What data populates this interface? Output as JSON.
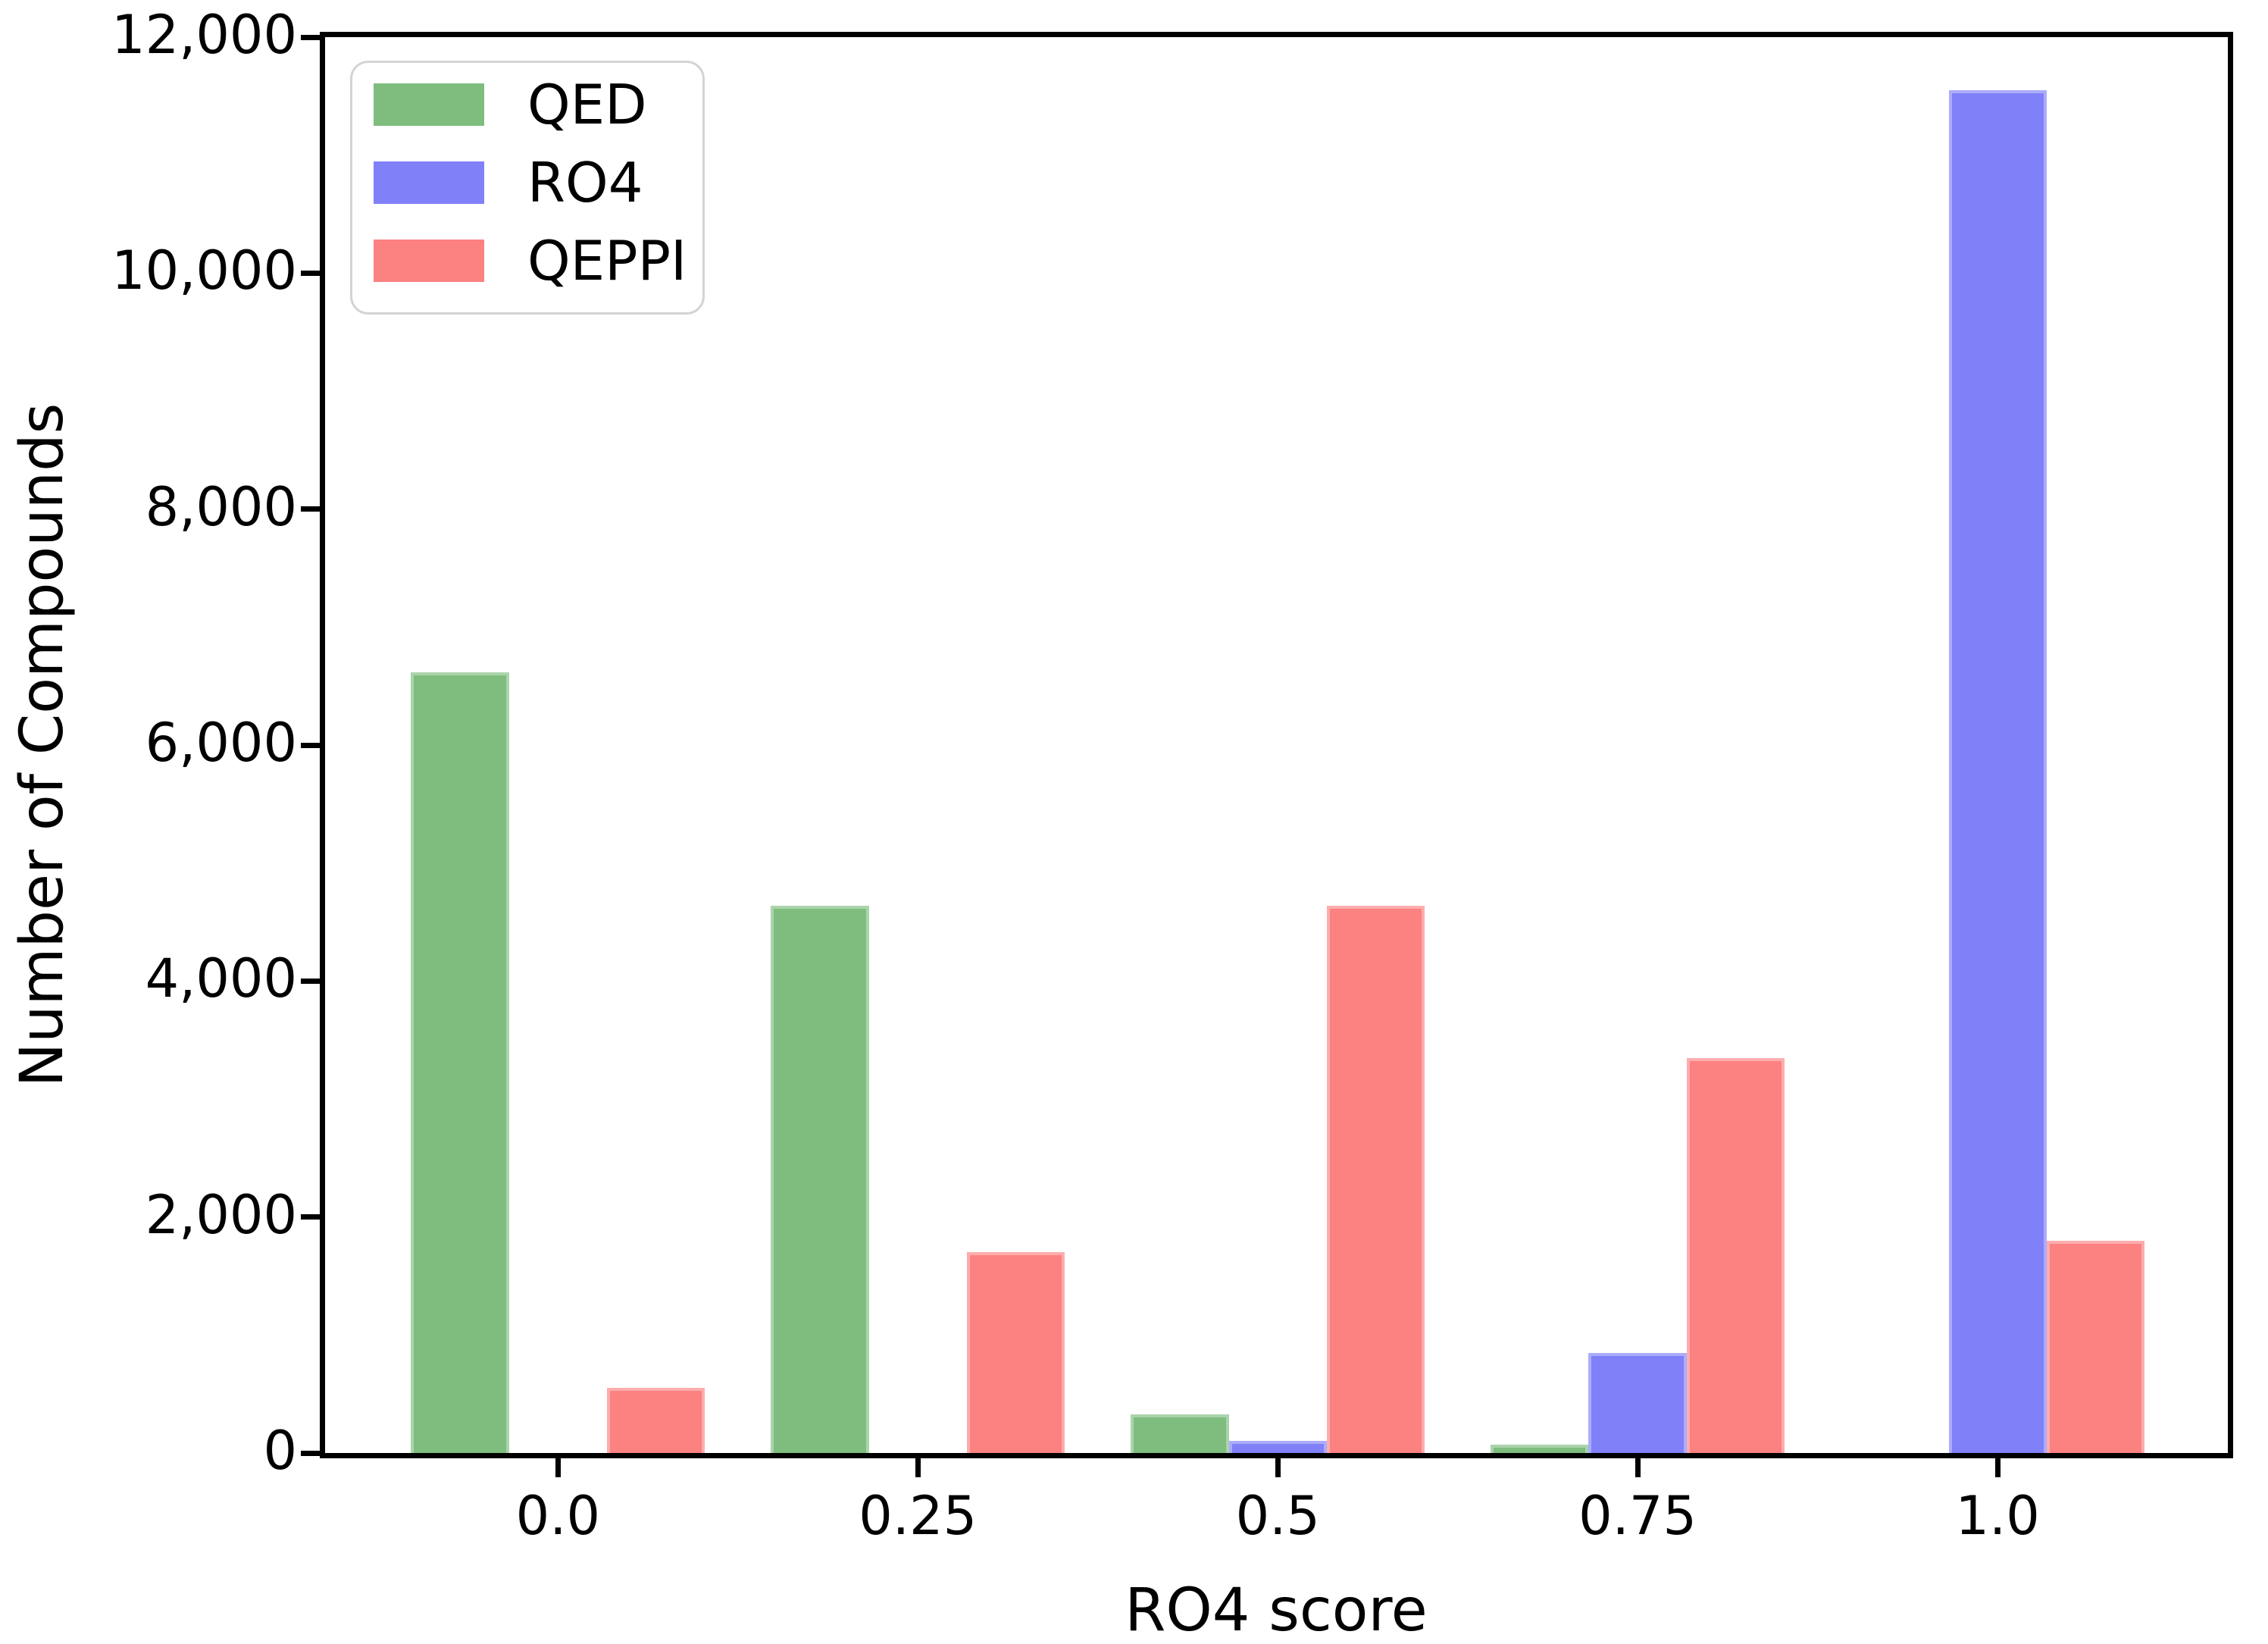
{
  "chart_data": {
    "type": "bar",
    "title": "",
    "xlabel": "RO4 score",
    "ylabel": "Number of Compounds",
    "categories": [
      "0.0",
      "0.25",
      "0.5",
      "0.75",
      "1.0"
    ],
    "series": [
      {
        "name": "QED",
        "color": "#7ebd7e",
        "values": [
          6620,
          4640,
          330,
          70,
          0
        ]
      },
      {
        "name": "RO4",
        "color": "#8080f8",
        "values": [
          0,
          0,
          100,
          850,
          11550
        ]
      },
      {
        "name": "QEPPI",
        "color": "#fc8181",
        "values": [
          550,
          1700,
          4640,
          3350,
          1800
        ]
      }
    ],
    "ylim": [
      0,
      12000
    ],
    "yticks": {
      "values": [
        0,
        2000,
        4000,
        6000,
        8000,
        10000,
        12000
      ],
      "labels": [
        "0",
        "2,000",
        "4,000",
        "6,000",
        "8,000",
        "10,000",
        "12,000"
      ]
    },
    "legend_position": "upper left",
    "grid": false,
    "axis_color": "#000000",
    "background_color": "#ffffff"
  }
}
